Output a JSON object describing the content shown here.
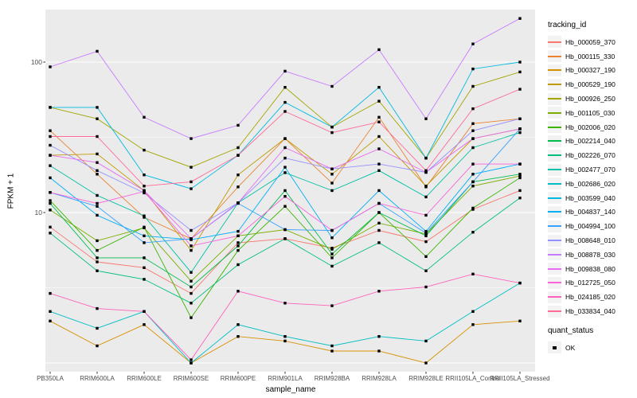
{
  "figure": {
    "panel_background": "#EBEBEB",
    "gridline_color": "#FFFFFF",
    "tick_color": "#333333",
    "tick_label_color": "#4D4D4D",
    "point_color": "#000000",
    "legend_key_background": "#F2F2F2"
  },
  "chart_data": {
    "type": "line",
    "title": "",
    "xlabel": "sample_name",
    "ylabel": "FPKM + 1",
    "y_scale": "log10",
    "ylim": [
      0.9,
      225
    ],
    "grid": true,
    "legend_position": "right",
    "legend_title": "tracking_id",
    "marker_shape": "filled-square",
    "y_tick_values": [
      100,
      10
    ],
    "y_tick_labels": [
      "100",
      "10"
    ],
    "y_major_gridlines": [
      100,
      10,
      1
    ],
    "y_minor_gridlines": [
      31.62,
      3.162
    ],
    "categories": [
      "PB350LA",
      "RRIM600LA",
      "RRIM600LE",
      "RRIM600SE",
      "RRIM600PE",
      "RRIM901LA",
      "RRIM928BA",
      "RRIM928LA",
      "RRIM928LE",
      "RRII105LA_Control",
      "RRII105LA_Stressed"
    ],
    "series": [
      {
        "name": "Hb_000059_370",
        "color": "#F8766D",
        "values": [
          8.0,
          4.7,
          4.3,
          2.9,
          6.3,
          6.7,
          5.8,
          7.6,
          6.4,
          10.5,
          14.0
        ]
      },
      {
        "name": "Hb_000115_330",
        "color": "#EA8331",
        "values": [
          35,
          18,
          9.3,
          6.7,
          14.8,
          31,
          15.7,
          43,
          14.8,
          39,
          42
        ]
      },
      {
        "name": "Hb_000327_190",
        "color": "#D89000",
        "values": [
          1.9,
          1.3,
          1.8,
          1.0,
          1.5,
          1.4,
          1.2,
          1.2,
          1.0,
          1.8,
          1.9
        ]
      },
      {
        "name": "Hb_000529_190",
        "color": "#C09B00",
        "values": [
          24,
          24.5,
          14,
          5.6,
          17.8,
          31,
          18,
          32,
          15,
          31,
          36
        ]
      },
      {
        "name": "Hb_000926_250",
        "color": "#A3A500",
        "values": [
          50,
          42,
          26,
          20,
          27,
          68,
          37,
          55,
          23,
          69,
          86
        ]
      },
      {
        "name": "Hb_001105_030",
        "color": "#7CAE00",
        "values": [
          10.4,
          6.5,
          7.9,
          3.5,
          7.0,
          7.7,
          5.7,
          8.5,
          7.2,
          15,
          17.5
        ]
      },
      {
        "name": "Hb_002006_020",
        "color": "#39B600",
        "values": [
          12,
          5.6,
          8.0,
          2.0,
          5.6,
          11,
          5.0,
          10,
          5.1,
          10.7,
          17
        ]
      },
      {
        "name": "Hb_002214_040",
        "color": "#00BB4E",
        "values": [
          11.5,
          5.0,
          5.0,
          3.2,
          6.0,
          14,
          5.3,
          10,
          7.0,
          16,
          18
        ]
      },
      {
        "name": "Hb_002226_070",
        "color": "#00BF7D",
        "values": [
          7.3,
          4.1,
          3.6,
          2.5,
          4.5,
          6.7,
          4.4,
          6.3,
          4.1,
          7.4,
          12.5
        ]
      },
      {
        "name": "Hb_002477_070",
        "color": "#00C1A3",
        "values": [
          20.5,
          13,
          9.5,
          4.0,
          11.6,
          18.4,
          14,
          19,
          12.7,
          27,
          34
        ]
      },
      {
        "name": "Hb_002686_020",
        "color": "#00BFC4",
        "values": [
          2.2,
          1.7,
          2.2,
          1.0,
          1.8,
          1.5,
          1.3,
          1.5,
          1.4,
          2.2,
          3.4
        ]
      },
      {
        "name": "Hb_003599_040",
        "color": "#00BAE0",
        "values": [
          50,
          50,
          17.8,
          14.4,
          24,
          54,
          37,
          68,
          23,
          90,
          100
        ]
      },
      {
        "name": "Hb_004837_140",
        "color": "#00B0F6",
        "values": [
          17,
          9.6,
          7.0,
          6.6,
          7.5,
          20,
          6.8,
          14,
          7.5,
          18,
          21
        ]
      },
      {
        "name": "Hb_004994_100",
        "color": "#35A2FF",
        "values": [
          13.6,
          11,
          6.3,
          6.7,
          11.5,
          7.7,
          7.6,
          11.5,
          7.3,
          16,
          36
        ]
      },
      {
        "name": "Hb_008648_010",
        "color": "#9590FF",
        "values": [
          28,
          19,
          13.5,
          7.6,
          11.6,
          23,
          19.5,
          21,
          18.5,
          35,
          42
        ]
      },
      {
        "name": "Hb_008878_030",
        "color": "#C77CFF",
        "values": [
          93,
          118,
          43,
          31,
          38,
          87,
          69,
          121,
          42,
          132,
          195
        ]
      },
      {
        "name": "Hb_009838_080",
        "color": "#E76BF3",
        "values": [
          24,
          21.5,
          14,
          6.7,
          11.6,
          27,
          19.5,
          26.5,
          18.5,
          31,
          36
        ]
      },
      {
        "name": "Hb_012725_050",
        "color": "#FA62DB",
        "values": [
          13.6,
          11.5,
          13.8,
          6.0,
          7.0,
          12.8,
          7.6,
          11.5,
          9.6,
          21,
          21
        ]
      },
      {
        "name": "Hb_024185_020",
        "color": "#FF62BC",
        "values": [
          2.9,
          2.3,
          2.2,
          1.05,
          3.0,
          2.5,
          2.4,
          3.0,
          3.2,
          3.9,
          3.4
        ]
      },
      {
        "name": "Hb_033834_040",
        "color": "#FF6A98",
        "values": [
          32,
          32,
          15,
          16,
          24,
          47,
          34,
          40,
          19,
          49,
          66
        ]
      }
    ],
    "quant_legend": {
      "title": "quant_status",
      "items": [
        {
          "label": "OK",
          "marker": "filled-square"
        }
      ]
    }
  }
}
